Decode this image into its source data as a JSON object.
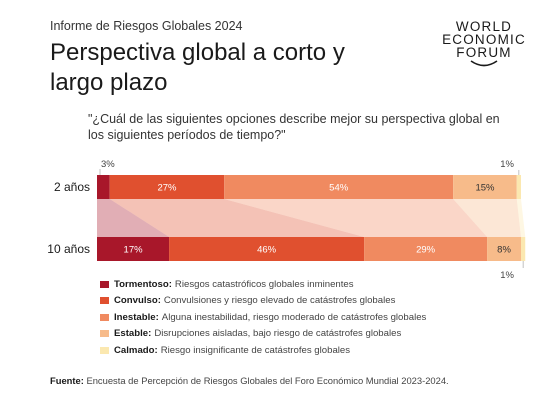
{
  "header": {
    "report_label": "Informe de Riesgos Globales 2024",
    "title": "Perspectiva global a corto y largo plazo",
    "logo_lines": [
      "WORLD",
      "ECONOMIC",
      "FORUM"
    ]
  },
  "question": "\"¿Cuál de las siguientes opciones describe mejor su perspectiva global en los siguientes períodos de tiempo?\"",
  "chart_data": {
    "type": "bar",
    "orientation": "horizontal-stacked-100",
    "categories": [
      "2 años",
      "10 años"
    ],
    "series": [
      {
        "name": "Tormentoso",
        "color": "#a8172a",
        "values": [
          3,
          17
        ]
      },
      {
        "name": "Convulso",
        "color": "#e0502f",
        "values": [
          27,
          46
        ]
      },
      {
        "name": "Inestable",
        "color": "#f08a60",
        "values": [
          54,
          29
        ]
      },
      {
        "name": "Estable",
        "color": "#f7bb8a",
        "values": [
          15,
          8
        ]
      },
      {
        "name": "Calmado",
        "color": "#fbe8b0",
        "values": [
          1,
          1
        ]
      }
    ],
    "data_labels": [
      [
        "3%",
        "27%",
        "54%",
        "15%",
        "1%"
      ],
      [
        "17%",
        "46%",
        "29%",
        "8%",
        "1%"
      ]
    ],
    "xlim": [
      0,
      100
    ]
  },
  "legend": [
    {
      "name": "Tormentoso:",
      "desc": "Riesgos catastróficos globales inminentes",
      "color": "#a8172a"
    },
    {
      "name": "Convulso:",
      "desc": "Convulsiones y riesgo elevado de catástrofes globales",
      "color": "#e0502f"
    },
    {
      "name": "Inestable:",
      "desc": "Alguna inestabilidad, riesgo moderado de catástrofes globales",
      "color": "#f08a60"
    },
    {
      "name": "Estable:",
      "desc": "Disrupciones aisladas, bajo riesgo de catástrofes globales",
      "color": "#f7bb8a"
    },
    {
      "name": "Calmado:",
      "desc": "Riesgo insignificante de catástrofes globales",
      "color": "#fbe8b0"
    }
  ],
  "source": {
    "label": "Fuente:",
    "text": "Encuesta de Percepción de Riesgos Globales del Foro Económico Mundial 2023-2024."
  }
}
